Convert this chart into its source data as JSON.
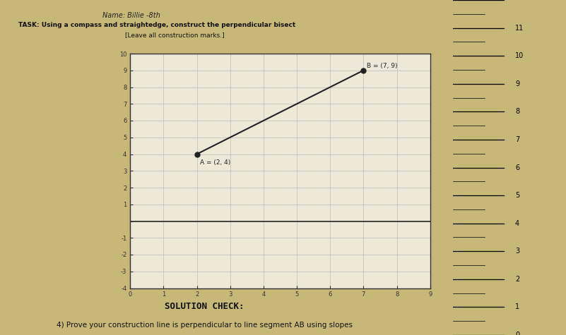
{
  "background_color": "#c8b878",
  "paper_color": "#ede8d8",
  "title_line1": "Name: Billie -8th",
  "title_line2": "TASK: Using a compass and straightedge, construct the perpendicular bisect",
  "title_line3": "[Leave all construction marks.]",
  "solution_check": "SOLUTION CHECK:",
  "solution_line": "4) Prove your construction line is perpendicular to line segment AB using slopes",
  "point_A": [
    2,
    4
  ],
  "point_B": [
    7,
    9
  ],
  "label_A": "A = (2, 4)",
  "label_B": "B = (7, 9)",
  "xmin": 0,
  "xmax": 9,
  "ymin": -4,
  "ymax": 10,
  "line_color": "#222222",
  "grid_color": "#bbbbbb",
  "axis_color": "#333333",
  "ruler_color": "#aacc00",
  "ruler_dark": "#88aa00"
}
